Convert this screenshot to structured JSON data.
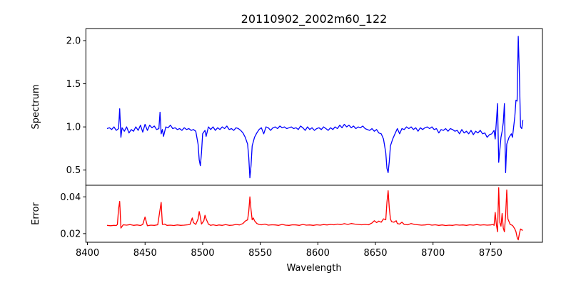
{
  "chart_data": {
    "type": "line",
    "title": "20110902_2002m60_122",
    "xlabel": "Wavelength",
    "xlim": [
      8398.6,
      8795
    ],
    "xticks": [
      8400,
      8450,
      8500,
      8550,
      8600,
      8650,
      8700,
      8750
    ],
    "grid": false,
    "panels": [
      {
        "name": "spectrum",
        "ylabel": "Spectrum",
        "ylim": [
          0.324,
          2.138
        ],
        "yticks": [
          0.5,
          1.0,
          1.5,
          2.0
        ],
        "ytick_labels": [
          "0.5",
          "1.0",
          "1.5",
          "2.0"
        ],
        "series": [
          {
            "name": "Spectrum",
            "color": "#0000ff",
            "x": [
              8417,
              8419,
              8421,
              8423,
              8425,
              8427,
              8428,
              8429,
              8430,
              8432,
              8434,
              8436,
              8438,
              8440,
              8442,
              8444,
              8446,
              8448,
              8450,
              8452,
              8454,
              8456,
              8458,
              8460,
              8462,
              8463,
              8464,
              8465,
              8466,
              8468,
              8470,
              8472,
              8474,
              8476,
              8478,
              8480,
              8482,
              8484,
              8486,
              8488,
              8490,
              8492,
              8494,
              8496,
              8497,
              8498,
              8499,
              8500,
              8502,
              8503,
              8505,
              8507,
              8509,
              8511,
              8513,
              8515,
              8517,
              8519,
              8521,
              8523,
              8525,
              8527,
              8529,
              8531,
              8533,
              8535,
              8537,
              8539,
              8540,
              8541,
              8542,
              8543,
              8545,
              8547,
              8549,
              8551,
              8553,
              8555,
              8557,
              8559,
              8561,
              8563,
              8565,
              8567,
              8569,
              8571,
              8573,
              8575,
              8577,
              8579,
              8581,
              8583,
              8585,
              8587,
              8589,
              8591,
              8593,
              8595,
              8597,
              8599,
              8601,
              8603,
              8605,
              8607,
              8609,
              8611,
              8613,
              8615,
              8617,
              8619,
              8621,
              8623,
              8625,
              8627,
              8629,
              8631,
              8633,
              8635,
              8637,
              8639,
              8641,
              8643,
              8645,
              8647,
              8649,
              8651,
              8653,
              8655,
              8657,
              8659,
              8660,
              8661,
              8662,
              8663,
              8665,
              8667,
              8669,
              8671,
              8673,
              8675,
              8677,
              8679,
              8681,
              8683,
              8685,
              8687,
              8689,
              8691,
              8693,
              8695,
              8697,
              8699,
              8701,
              8703,
              8705,
              8707,
              8709,
              8711,
              8713,
              8715,
              8717,
              8719,
              8721,
              8723,
              8725,
              8727,
              8729,
              8731,
              8733,
              8735,
              8737,
              8739,
              8741,
              8743,
              8745,
              8747,
              8749,
              8751,
              8753,
              8754,
              8756,
              8757,
              8759,
              8760,
              8761,
              8762,
              8763,
              8764,
              8766,
              8768,
              8769,
              8771,
              8772,
              8773,
              8774,
              8775,
              8776,
              8777,
              8778
            ],
            "y": [
              0.98,
              0.99,
              0.97,
              1.0,
              0.96,
              0.98,
              1.21,
              0.88,
              0.99,
              0.95,
              1.0,
              0.93,
              0.97,
              0.95,
              1.0,
              0.96,
              1.02,
              0.94,
              1.03,
              0.96,
              1.02,
              0.99,
              1.01,
              0.97,
              0.98,
              1.17,
              0.92,
              0.97,
              0.89,
              1.0,
              0.99,
              1.02,
              0.98,
              0.99,
              0.97,
              0.98,
              0.96,
              0.99,
              0.97,
              0.98,
              0.96,
              0.97,
              0.95,
              0.8,
              0.62,
              0.55,
              0.7,
              0.92,
              0.96,
              0.89,
              1.0,
              0.97,
              1.0,
              0.96,
              0.99,
              0.97,
              1.0,
              0.98,
              1.01,
              0.97,
              0.98,
              0.96,
              0.99,
              0.98,
              0.96,
              0.93,
              0.88,
              0.8,
              0.65,
              0.41,
              0.55,
              0.78,
              0.88,
              0.93,
              0.97,
              0.99,
              0.92,
              1.0,
              0.99,
              0.96,
              0.99,
              1.0,
              0.98,
              1.01,
              0.99,
              1.0,
              0.98,
              0.99,
              1.0,
              0.98,
              0.99,
              0.97,
              1.01,
              0.99,
              0.96,
              1.0,
              0.97,
              0.99,
              0.96,
              0.98,
              0.99,
              0.97,
              1.0,
              0.98,
              0.96,
              0.99,
              0.97,
              1.0,
              0.98,
              1.02,
              0.99,
              1.03,
              1.0,
              1.02,
              0.99,
              1.01,
              0.98,
              1.0,
              0.99,
              1.01,
              0.98,
              0.97,
              0.96,
              0.98,
              0.95,
              0.97,
              0.93,
              0.92,
              0.86,
              0.7,
              0.52,
              0.47,
              0.6,
              0.78,
              0.86,
              0.92,
              0.98,
              0.92,
              0.98,
              0.97,
              1.0,
              0.98,
              1.0,
              0.97,
              0.99,
              0.95,
              0.99,
              0.97,
              0.99,
              1.0,
              0.98,
              1.0,
              0.97,
              0.98,
              0.93,
              0.97,
              0.96,
              0.98,
              0.95,
              0.98,
              0.97,
              0.95,
              0.96,
              0.92,
              0.97,
              0.93,
              0.95,
              0.92,
              0.96,
              0.91,
              0.95,
              0.93,
              0.96,
              0.92,
              0.93,
              0.88,
              0.91,
              0.92,
              0.96,
              0.86,
              1.27,
              0.59,
              0.88,
              0.95,
              1.05,
              1.27,
              0.47,
              0.8,
              0.88,
              0.92,
              0.88,
              1.12,
              1.31,
              1.3,
              2.05,
              1.6,
              1.0,
              0.98,
              1.08
            ]
          }
        ]
      },
      {
        "name": "error",
        "ylabel": "Error",
        "ylim": [
          0.0153,
          0.0463
        ],
        "yticks": [
          0.02,
          0.04
        ],
        "ytick_labels": [
          "0.02",
          "0.04"
        ],
        "series": [
          {
            "name": "Error",
            "color": "#ff0000",
            "x": [
              8417,
              8420,
              8423,
              8425,
              8426,
              8427,
              8428,
              8429,
              8431,
              8434,
              8437,
              8440,
              8443,
              8446,
              8448,
              8449,
              8450,
              8451,
              8452,
              8455,
              8458,
              8461,
              8463,
              8464,
              8465,
              8467,
              8469,
              8472,
              8475,
              8478,
              8481,
              8484,
              8487,
              8489,
              8491,
              8492,
              8494,
              8496,
              8497,
              8498,
              8499,
              8501,
              8502,
              8503,
              8505,
              8507,
              8509,
              8512,
              8514,
              8517,
              8520,
              8523,
              8526,
              8529,
              8532,
              8535,
              8537,
              8539,
              8540,
              8541,
              8542,
              8543,
              8544,
              8545,
              8547,
              8549,
              8551,
              8554,
              8557,
              8560,
              8563,
              8566,
              8569,
              8572,
              8575,
              8578,
              8581,
              8584,
              8587,
              8590,
              8593,
              8596,
              8599,
              8602,
              8605,
              8608,
              8611,
              8614,
              8617,
              8620,
              8623,
              8626,
              8629,
              8632,
              8635,
              8638,
              8641,
              8644,
              8647,
              8649,
              8651,
              8653,
              8655,
              8657,
              8659,
              8660,
              8661,
              8662,
              8663,
              8664,
              8666,
              8668,
              8669,
              8671,
              8673,
              8675,
              8678,
              8681,
              8684,
              8687,
              8690,
              8693,
              8696,
              8699,
              8702,
              8705,
              8708,
              8711,
              8714,
              8717,
              8720,
              8723,
              8726,
              8729,
              8732,
              8735,
              8738,
              8741,
              8744,
              8747,
              8750,
              8752,
              8753,
              8754,
              8755,
              8756,
              8757,
              8758,
              8759,
              8760,
              8761,
              8762,
              8763,
              8764,
              8765,
              8767,
              8769,
              8770,
              8771,
              8772,
              8773,
              8774,
              8775,
              8776,
              8777,
              8778
            ],
            "y": [
              0.0245,
              0.0243,
              0.0245,
              0.0244,
              0.025,
              0.0335,
              0.0375,
              0.023,
              0.0248,
              0.0246,
              0.0249,
              0.0245,
              0.0247,
              0.0244,
              0.025,
              0.027,
              0.029,
              0.0265,
              0.0243,
              0.0246,
              0.0245,
              0.0248,
              0.033,
              0.037,
              0.025,
              0.0252,
              0.0245,
              0.0246,
              0.0244,
              0.0247,
              0.0245,
              0.0246,
              0.0248,
              0.025,
              0.0285,
              0.026,
              0.025,
              0.028,
              0.032,
              0.029,
              0.0252,
              0.027,
              0.03,
              0.028,
              0.0252,
              0.0245,
              0.0248,
              0.0244,
              0.0247,
              0.0245,
              0.0249,
              0.0245,
              0.0246,
              0.025,
              0.0247,
              0.0255,
              0.0268,
              0.0275,
              0.032,
              0.04,
              0.033,
              0.0275,
              0.0285,
              0.027,
              0.0255,
              0.025,
              0.0248,
              0.0252,
              0.0246,
              0.0248,
              0.0247,
              0.0245,
              0.025,
              0.0246,
              0.0245,
              0.0248,
              0.0247,
              0.0245,
              0.025,
              0.0246,
              0.0247,
              0.0245,
              0.0248,
              0.0246,
              0.0249,
              0.0247,
              0.025,
              0.0248,
              0.0252,
              0.0249,
              0.0254,
              0.025,
              0.0255,
              0.0252,
              0.025,
              0.0248,
              0.025,
              0.0248,
              0.0258,
              0.027,
              0.026,
              0.0268,
              0.0262,
              0.028,
              0.0275,
              0.037,
              0.0433,
              0.034,
              0.028,
              0.0265,
              0.0262,
              0.027,
              0.0255,
              0.0252,
              0.0262,
              0.025,
              0.0248,
              0.0255,
              0.025,
              0.0248,
              0.0246,
              0.0247,
              0.025,
              0.0246,
              0.0248,
              0.0245,
              0.0247,
              0.0244,
              0.0246,
              0.0245,
              0.0248,
              0.0246,
              0.0247,
              0.0245,
              0.0248,
              0.0246,
              0.0249,
              0.0246,
              0.0248,
              0.0246,
              0.0247,
              0.025,
              0.0245,
              0.0315,
              0.025,
              0.021,
              0.045,
              0.026,
              0.024,
              0.031,
              0.023,
              0.021,
              0.03,
              0.0437,
              0.028,
              0.025,
              0.0245,
              0.0235,
              0.0225,
              0.021,
              0.018,
              0.0166,
              0.02,
              0.0225,
              0.022,
              0.0218
            ]
          }
        ]
      }
    ],
    "xtick_labels": [
      "8400",
      "8450",
      "8500",
      "8550",
      "8600",
      "8650",
      "8700",
      "8750"
    ]
  }
}
